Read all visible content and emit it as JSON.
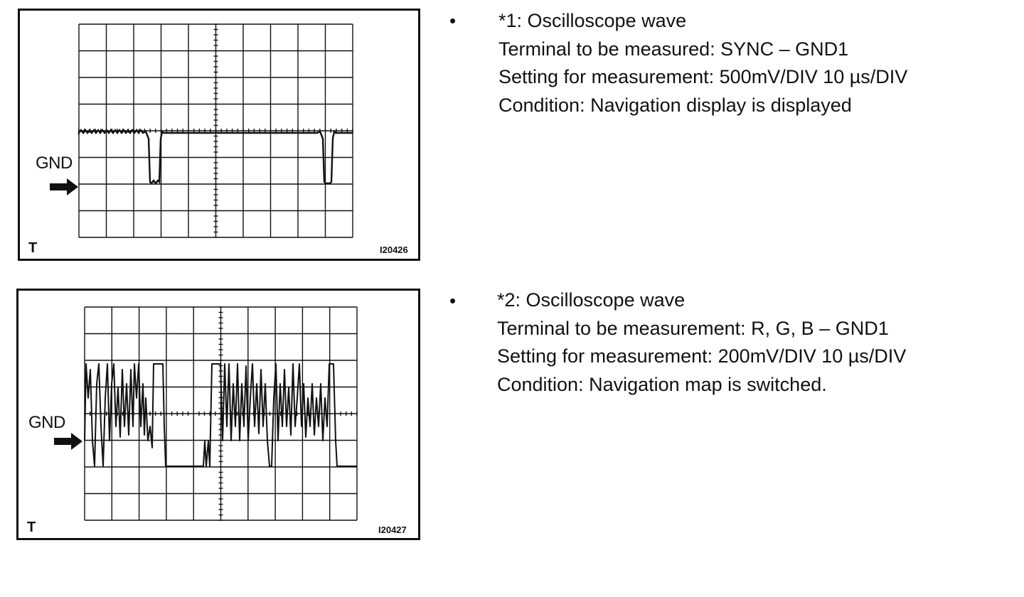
{
  "figures": [
    {
      "gnd_label": "GND",
      "t_label": "T",
      "figure_id": "I20426",
      "icons": {
        "arrow": "right-arrow-icon"
      },
      "description": {
        "bullet": "•",
        "title": "*1: Oscilloscope wave",
        "terminal": "Terminal to be measured: SYNC – GND1",
        "setting": "Setting for measurement: 500mV/DIV 10 µs/DIV",
        "condition": "Condition: Navigation display is displayed"
      }
    },
    {
      "gnd_label": "GND",
      "t_label": "T",
      "figure_id": "I20427",
      "icons": {
        "arrow": "right-arrow-icon"
      },
      "description": {
        "bullet": "•",
        "title": "*2: Oscilloscope wave",
        "terminal": "Terminal to be measurement: R, G, B – GND1",
        "setting": "Setting for measurement: 200mV/DIV 10 µs/DIV",
        "condition": "Condition: Navigation map is switched."
      }
    }
  ],
  "colors": {
    "ink": "#111111",
    "paper": "#ffffff"
  }
}
